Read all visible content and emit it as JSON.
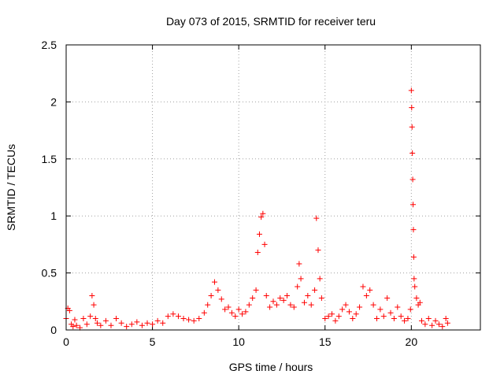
{
  "chart_data": {
    "type": "scatter",
    "title": "Day 073 of 2015, SRMTID for receiver teru",
    "xlabel": "GPS time / hours",
    "ylabel": "SRMTID / TECUs",
    "xlim": [
      0,
      24
    ],
    "ylim": [
      0,
      2.5
    ],
    "xticks": [
      "0",
      "5",
      "10",
      "15",
      "20"
    ],
    "xtick_values": [
      0,
      5,
      10,
      15,
      20
    ],
    "yticks": [
      "0",
      "0.5",
      "1",
      "1.5",
      "2",
      "2.5"
    ],
    "ytick_values": [
      0,
      0.5,
      1,
      1.5,
      2,
      2.5
    ],
    "grid": true,
    "marker": "plus",
    "series": [
      {
        "name": "SRMTID",
        "color": "#ff0000",
        "x": [
          0.0,
          0.1,
          0.2,
          0.3,
          0.4,
          0.5,
          0.6,
          0.8,
          1.0,
          1.2,
          1.4,
          1.5,
          1.6,
          1.7,
          1.8,
          2.0,
          2.3,
          2.6,
          2.9,
          3.2,
          3.5,
          3.8,
          4.1,
          4.4,
          4.7,
          5.0,
          5.3,
          5.6,
          5.9,
          6.2,
          6.5,
          6.8,
          7.1,
          7.4,
          7.7,
          8.0,
          8.2,
          8.4,
          8.6,
          8.8,
          9.0,
          9.2,
          9.4,
          9.6,
          9.8,
          10.0,
          10.2,
          10.4,
          10.6,
          10.8,
          11.0,
          11.1,
          11.2,
          11.3,
          11.4,
          11.5,
          11.6,
          11.8,
          12.0,
          12.2,
          12.4,
          12.6,
          12.8,
          13.0,
          13.2,
          13.4,
          13.5,
          13.6,
          13.8,
          14.0,
          14.2,
          14.4,
          14.5,
          14.6,
          14.7,
          14.8,
          15.0,
          15.2,
          15.4,
          15.6,
          15.8,
          16.0,
          16.2,
          16.4,
          16.6,
          16.8,
          17.0,
          17.2,
          17.4,
          17.6,
          17.8,
          18.0,
          18.2,
          18.4,
          18.6,
          18.8,
          19.0,
          19.2,
          19.4,
          19.6,
          19.8,
          19.95,
          20.0,
          20.02,
          20.04,
          20.06,
          20.08,
          20.1,
          20.12,
          20.14,
          20.16,
          20.2,
          20.3,
          20.4,
          20.5,
          20.6,
          20.8,
          21.0,
          21.2,
          21.4,
          21.6,
          21.8,
          22.0,
          22.1
        ],
        "y": [
          0.1,
          0.19,
          0.17,
          0.05,
          0.03,
          0.09,
          0.04,
          0.02,
          0.1,
          0.05,
          0.12,
          0.3,
          0.22,
          0.1,
          0.06,
          0.04,
          0.08,
          0.04,
          0.1,
          0.06,
          0.03,
          0.05,
          0.07,
          0.04,
          0.06,
          0.05,
          0.08,
          0.06,
          0.12,
          0.14,
          0.12,
          0.1,
          0.09,
          0.08,
          0.1,
          0.15,
          0.22,
          0.3,
          0.42,
          0.35,
          0.27,
          0.18,
          0.2,
          0.15,
          0.12,
          0.18,
          0.14,
          0.16,
          0.22,
          0.28,
          0.35,
          0.68,
          0.84,
          0.99,
          1.02,
          0.75,
          0.3,
          0.2,
          0.25,
          0.22,
          0.28,
          0.26,
          0.3,
          0.22,
          0.2,
          0.38,
          0.58,
          0.45,
          0.24,
          0.3,
          0.22,
          0.35,
          0.98,
          0.7,
          0.45,
          0.28,
          0.1,
          0.12,
          0.14,
          0.08,
          0.12,
          0.18,
          0.22,
          0.16,
          0.1,
          0.14,
          0.2,
          0.38,
          0.3,
          0.35,
          0.22,
          0.1,
          0.18,
          0.12,
          0.28,
          0.15,
          0.1,
          0.2,
          0.12,
          0.08,
          0.1,
          0.18,
          2.1,
          1.95,
          1.78,
          1.55,
          1.32,
          1.1,
          0.88,
          0.64,
          0.45,
          0.38,
          0.28,
          0.22,
          0.24,
          0.08,
          0.05,
          0.1,
          0.04,
          0.08,
          0.05,
          0.03,
          0.1,
          0.06
        ]
      }
    ]
  }
}
